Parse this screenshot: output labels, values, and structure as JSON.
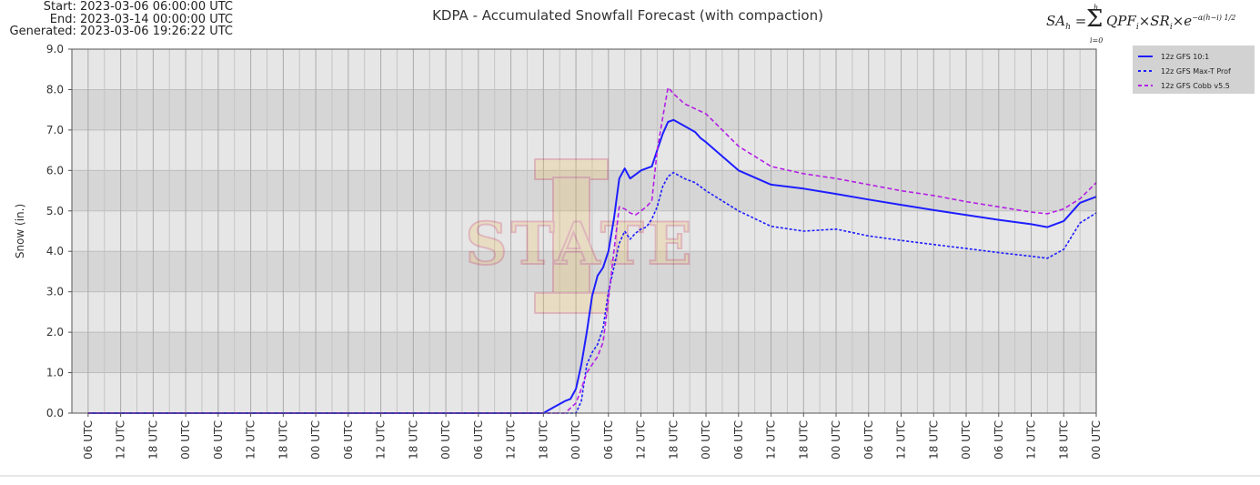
{
  "header": {
    "start_line": "Start: 2023-03-06 06:00:00 UTC",
    "end_line": "End: 2023-03-14 00:00:00 UTC",
    "generated_line": "Generated: 2023-03-06 19:26:22 UTC"
  },
  "formula": {
    "lhs": "SA",
    "lhs_sub": "h",
    "eq": "=",
    "sum_top": "h",
    "sum_bottom": "i=0",
    "body": "QPF",
    "body_sub1": "i",
    "times1": "×SR",
    "body_sub2": "i",
    "times2": "×e",
    "exp": "−α(h−i)",
    "exp_frac": "1/2"
  },
  "watermark": {
    "text": "STATE",
    "color": "#f1be48",
    "accent": "#c8102e"
  },
  "chart_data": {
    "type": "line",
    "title": "KDPA - Accumulated Snowfall Forecast (with compaction)",
    "xlabel": "",
    "ylabel": "Snow (in.)",
    "ylim": [
      0,
      9
    ],
    "yticks": [
      "0.0",
      "1.0",
      "2.0",
      "3.0",
      "4.0",
      "5.0",
      "6.0",
      "7.0",
      "8.0",
      "9.0"
    ],
    "x_domain": [
      -3,
      186
    ],
    "x_unit": "forecast hours after 2023-03-06 06:00 UTC",
    "x_tick_hours": [
      0,
      6,
      12,
      18,
      24,
      30,
      36,
      42,
      48,
      54,
      60,
      66,
      72,
      78,
      84,
      90,
      96,
      102,
      108,
      114,
      120,
      126,
      132,
      138,
      144,
      150,
      156,
      162,
      168,
      174,
      180,
      186
    ],
    "x_tick_labels": [
      "06 UTC",
      "12 UTC",
      "18 UTC",
      "00 UTC",
      "06 UTC",
      "12 UTC",
      "18 UTC",
      "00 UTC",
      "06 UTC",
      "12 UTC",
      "18 UTC",
      "00 UTC",
      "06 UTC",
      "12 UTC",
      "18 UTC",
      "00 UTC",
      "06 UTC",
      "12 UTC",
      "18 UTC",
      "00 UTC",
      "06 UTC",
      "12 UTC",
      "18 UTC",
      "00 UTC",
      "06 UTC",
      "12 UTC",
      "18 UTC",
      "00 UTC",
      "06 UTC",
      "12 UTC",
      "18 UTC",
      "00 UTC"
    ],
    "band_colors": [
      "#d6d6d6",
      "#e6e6e6"
    ],
    "grid": true,
    "legend_position": "top-right outside",
    "series": [
      {
        "name": "12z GFS 10:1",
        "color": "#1e1eff",
        "dash": "solid",
        "points": [
          [
            0,
            0
          ],
          [
            84,
            0
          ],
          [
            86,
            0.15
          ],
          [
            88,
            0.3
          ],
          [
            89,
            0.35
          ],
          [
            90,
            0.6
          ],
          [
            91,
            1.2
          ],
          [
            92,
            2.0
          ],
          [
            93,
            2.9
          ],
          [
            94,
            3.4
          ],
          [
            95,
            3.6
          ],
          [
            96,
            4.0
          ],
          [
            97,
            4.8
          ],
          [
            98,
            5.8
          ],
          [
            99,
            6.05
          ],
          [
            100,
            5.8
          ],
          [
            101,
            5.9
          ],
          [
            102,
            6.0
          ],
          [
            103,
            6.05
          ],
          [
            104,
            6.1
          ],
          [
            105,
            6.5
          ],
          [
            106,
            6.9
          ],
          [
            107,
            7.2
          ],
          [
            108,
            7.25
          ],
          [
            110,
            7.1
          ],
          [
            112,
            6.95
          ],
          [
            113,
            6.8
          ],
          [
            114,
            6.7
          ],
          [
            120,
            6.0
          ],
          [
            126,
            5.65
          ],
          [
            132,
            5.55
          ],
          [
            138,
            5.42
          ],
          [
            144,
            5.28
          ],
          [
            150,
            5.15
          ],
          [
            156,
            5.02
          ],
          [
            162,
            4.9
          ],
          [
            168,
            4.78
          ],
          [
            174,
            4.67
          ],
          [
            177,
            4.6
          ],
          [
            180,
            4.75
          ],
          [
            183,
            5.2
          ],
          [
            186,
            5.35
          ]
        ]
      },
      {
        "name": "12z GFS Max-T Prof",
        "color": "#1e1eff",
        "dash": "dotted",
        "points": [
          [
            0,
            0
          ],
          [
            90,
            0
          ],
          [
            91,
            0.3
          ],
          [
            92,
            1.2
          ],
          [
            93,
            1.5
          ],
          [
            94,
            1.7
          ],
          [
            95,
            2.1
          ],
          [
            96,
            3.0
          ],
          [
            97,
            3.6
          ],
          [
            98,
            4.2
          ],
          [
            99,
            4.5
          ],
          [
            100,
            4.3
          ],
          [
            101,
            4.45
          ],
          [
            102,
            4.55
          ],
          [
            103,
            4.6
          ],
          [
            104,
            4.8
          ],
          [
            105,
            5.1
          ],
          [
            106,
            5.6
          ],
          [
            107,
            5.85
          ],
          [
            108,
            5.95
          ],
          [
            110,
            5.8
          ],
          [
            112,
            5.7
          ],
          [
            114,
            5.5
          ],
          [
            120,
            5.0
          ],
          [
            126,
            4.62
          ],
          [
            132,
            4.5
          ],
          [
            138,
            4.55
          ],
          [
            144,
            4.38
          ],
          [
            150,
            4.27
          ],
          [
            156,
            4.17
          ],
          [
            162,
            4.07
          ],
          [
            168,
            3.97
          ],
          [
            174,
            3.88
          ],
          [
            177,
            3.83
          ],
          [
            180,
            4.05
          ],
          [
            183,
            4.7
          ],
          [
            186,
            4.95
          ]
        ]
      },
      {
        "name": "12z GFS Cobb v5.5",
        "color": "#b41ee6",
        "dash": "dashed",
        "points": [
          [
            0,
            0
          ],
          [
            88,
            0
          ],
          [
            90,
            0.25
          ],
          [
            91,
            0.6
          ],
          [
            92,
            1.0
          ],
          [
            93,
            1.2
          ],
          [
            94,
            1.4
          ],
          [
            95,
            1.75
          ],
          [
            96,
            2.8
          ],
          [
            97,
            4.0
          ],
          [
            98,
            5.1
          ],
          [
            99,
            5.05
          ],
          [
            100,
            4.95
          ],
          [
            101,
            4.9
          ],
          [
            102,
            5.0
          ],
          [
            103,
            5.1
          ],
          [
            104,
            5.25
          ],
          [
            105,
            6.5
          ],
          [
            106,
            7.3
          ],
          [
            107,
            8.05
          ],
          [
            108,
            7.9
          ],
          [
            110,
            7.65
          ],
          [
            114,
            7.4
          ],
          [
            120,
            6.6
          ],
          [
            126,
            6.1
          ],
          [
            132,
            5.92
          ],
          [
            138,
            5.8
          ],
          [
            144,
            5.65
          ],
          [
            150,
            5.5
          ],
          [
            156,
            5.38
          ],
          [
            162,
            5.23
          ],
          [
            168,
            5.1
          ],
          [
            174,
            4.97
          ],
          [
            177,
            4.93
          ],
          [
            180,
            5.05
          ],
          [
            183,
            5.3
          ],
          [
            186,
            5.7
          ]
        ]
      }
    ]
  }
}
